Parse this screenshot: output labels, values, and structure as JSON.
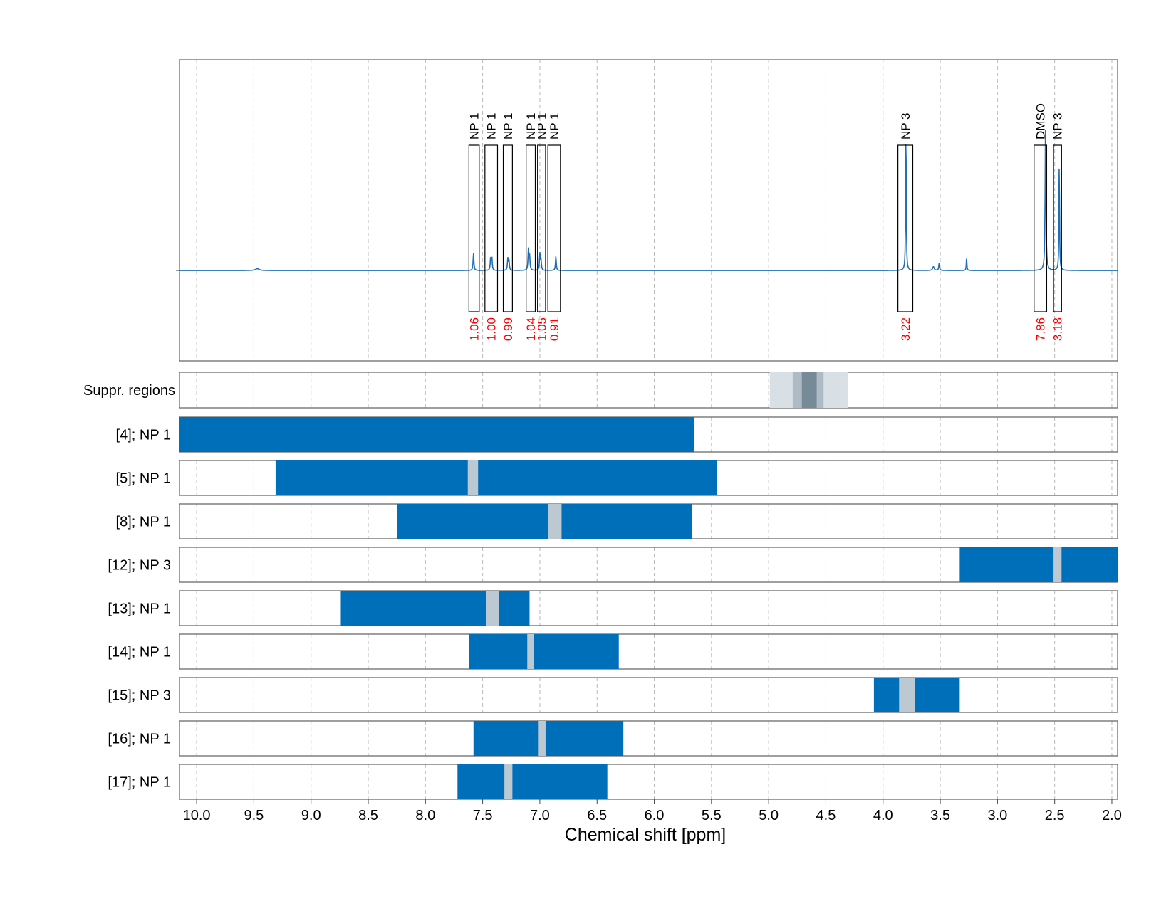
{
  "chart_data": {
    "type": "nmr-spectrum-with-region-bars",
    "xlabel": "Chemical shift [ppm]",
    "xlim": [
      10.15,
      1.95
    ],
    "x_reversed": true,
    "grid": true,
    "x_ticks": [
      10.0,
      9.5,
      9.0,
      8.5,
      8.0,
      7.5,
      7.0,
      6.5,
      6.0,
      5.5,
      5.0,
      4.5,
      4.0,
      3.5,
      3.0,
      2.5,
      2.0
    ],
    "x_tick_labels": [
      "10.0",
      "9.5",
      "9.0",
      "8.5",
      "8.0",
      "7.5",
      "7.0",
      "6.5",
      "6.0",
      "5.5",
      "5.0",
      "4.5",
      "4.0",
      "3.5",
      "3.0",
      "2.5",
      "2.0"
    ],
    "colors": {
      "spectrum": "#1f6fb4",
      "bar": "#006fba",
      "gap": "#bcc9d2",
      "suppr_light": "#d8e0e6",
      "suppr_mid": "#aebbc5",
      "suppr_dark": "#778a98",
      "integral_label": "#ff0000",
      "grid": "#b8b8b8"
    },
    "spectrum": {
      "baseline": 0.0,
      "ylim": [
        -0.6,
        1.4
      ],
      "peaks": [
        {
          "x": 9.47,
          "y": 0.012,
          "w": 0.02
        },
        {
          "x": 7.58,
          "y": 0.115,
          "w": 0.004
        },
        {
          "x": 7.43,
          "y": 0.085,
          "w": 0.004
        },
        {
          "x": 7.42,
          "y": 0.085,
          "w": 0.004
        },
        {
          "x": 7.28,
          "y": 0.08,
          "w": 0.004
        },
        {
          "x": 7.27,
          "y": 0.065,
          "w": 0.004
        },
        {
          "x": 7.1,
          "y": 0.14,
          "w": 0.004
        },
        {
          "x": 7.09,
          "y": 0.1,
          "w": 0.004
        },
        {
          "x": 7.0,
          "y": 0.115,
          "w": 0.004
        },
        {
          "x": 6.99,
          "y": 0.065,
          "w": 0.004
        },
        {
          "x": 6.86,
          "y": 0.095,
          "w": 0.004
        },
        {
          "x": 3.8,
          "y": 1.0,
          "w": 0.003
        },
        {
          "x": 3.56,
          "y": 0.025,
          "w": 0.008
        },
        {
          "x": 3.51,
          "y": 0.05,
          "w": 0.004
        },
        {
          "x": 3.27,
          "y": 0.085,
          "w": 0.003
        },
        {
          "x": 2.58,
          "y": 0.97,
          "w": 0.004
        },
        {
          "x": 2.46,
          "y": 0.74,
          "w": 0.003
        }
      ]
    },
    "annotations": [
      {
        "label": "NP 1",
        "integral": "1.06",
        "x1": 7.62,
        "x2": 7.53
      },
      {
        "label": "NP 1",
        "integral": "1.00",
        "x1": 7.48,
        "x2": 7.37
      },
      {
        "label": "NP 1",
        "integral": "0.99",
        "x1": 7.32,
        "x2": 7.24
      },
      {
        "label": "NP 1",
        "integral": "1.04",
        "x1": 7.12,
        "x2": 7.04
      },
      {
        "label": "NP 1",
        "integral": "1.05",
        "x1": 7.02,
        "x2": 6.95
      },
      {
        "label": "NP 1",
        "integral": "0.91",
        "x1": 6.93,
        "x2": 6.82
      },
      {
        "label": "NP 3",
        "integral": "3.22",
        "x1": 3.87,
        "x2": 3.74
      },
      {
        "label": "DMSO",
        "integral": "7.86",
        "x1": 2.68,
        "x2": 2.57
      },
      {
        "label": "NP 3",
        "integral": "3.18",
        "x1": 2.51,
        "x2": 2.44
      }
    ],
    "suppression_regions": {
      "label": "Suppr. regions",
      "bands": [
        {
          "x1": 4.99,
          "x2": 4.31,
          "level": "light"
        },
        {
          "x1": 4.79,
          "x2": 4.52,
          "level": "mid"
        },
        {
          "x1": 4.71,
          "x2": 4.58,
          "level": "dark"
        }
      ]
    },
    "rows": [
      {
        "label": "[4]; NP 1",
        "x1": 10.15,
        "x2": 5.65,
        "gaps": []
      },
      {
        "label": "[5]; NP 1",
        "x1": 9.31,
        "x2": 5.45,
        "gaps": [
          [
            7.63,
            7.54
          ]
        ]
      },
      {
        "label": "[8]; NP 1",
        "x1": 8.25,
        "x2": 5.67,
        "gaps": [
          [
            6.93,
            6.81
          ]
        ]
      },
      {
        "label": "[12]; NP 3",
        "x1": 3.33,
        "x2": 1.95,
        "gaps": [
          [
            2.51,
            2.44
          ]
        ]
      },
      {
        "label": "[13]; NP 1",
        "x1": 8.74,
        "x2": 7.09,
        "gaps": [
          [
            7.47,
            7.36
          ]
        ]
      },
      {
        "label": "[14]; NP 1",
        "x1": 7.62,
        "x2": 6.31,
        "gaps": [
          [
            7.11,
            7.05
          ]
        ]
      },
      {
        "label": "[15]; NP 3",
        "x1": 4.08,
        "x2": 3.33,
        "gaps": [
          [
            3.86,
            3.72
          ]
        ]
      },
      {
        "label": "[16]; NP 1",
        "x1": 7.58,
        "x2": 6.27,
        "gaps": [
          [
            7.01,
            6.95
          ]
        ]
      },
      {
        "label": "[17]; NP 1",
        "x1": 7.72,
        "x2": 6.41,
        "gaps": [
          [
            7.31,
            7.24
          ]
        ]
      }
    ]
  }
}
